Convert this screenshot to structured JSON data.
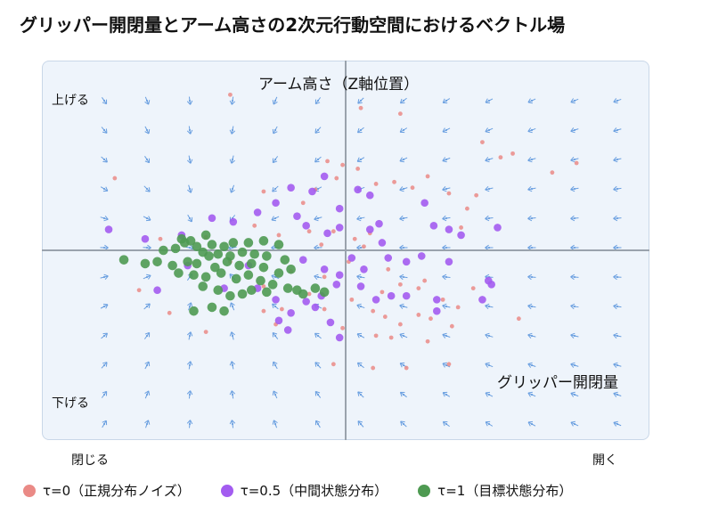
{
  "chart_data": {
    "type": "scatter",
    "title": "グリッパー開閉量とアーム高さの2次元行動空間におけるベクトル場",
    "y_axis_title": "アーム高さ（Z軸位置）",
    "x_axis_title": "グリッパー開閉量",
    "y_top_label": "上げる",
    "y_bottom_label": "下げる",
    "x_left_label": "閉じる",
    "x_right_label": "開く",
    "xlim": [
      -1,
      1
    ],
    "ylim": [
      -1,
      1
    ],
    "grid": false,
    "legend_position": "bottom",
    "vector_field": {
      "center": [
        -0.45,
        0.0
      ],
      "color": "#6a9fe0"
    },
    "series": [
      {
        "name": "τ=0（正規分布ノイズ）",
        "color": "#ea8a86",
        "points": [
          [
            -0.38,
            0.82
          ],
          [
            0.05,
            0.75
          ],
          [
            0.18,
            0.72
          ],
          [
            0.45,
            0.57
          ],
          [
            0.51,
            0.49
          ],
          [
            0.55,
            0.51
          ],
          [
            0.68,
            0.41
          ],
          [
            0.76,
            0.46
          ],
          [
            -0.76,
            0.38
          ],
          [
            -0.06,
            0.47
          ],
          [
            -0.03,
            0.38
          ],
          [
            -0.01,
            0.45
          ],
          [
            0.04,
            0.43
          ],
          [
            -0.27,
            0.31
          ],
          [
            -0.1,
            0.32
          ],
          [
            -0.14,
            0.25
          ],
          [
            0.1,
            0.35
          ],
          [
            0.16,
            0.36
          ],
          [
            0.22,
            0.33
          ],
          [
            0.27,
            0.39
          ],
          [
            0.34,
            0.3
          ],
          [
            0.4,
            0.22
          ],
          [
            0.43,
            0.29
          ],
          [
            0.38,
            0.12
          ],
          [
            -0.61,
            0.06
          ],
          [
            -0.46,
            0.07
          ],
          [
            -0.3,
            0.13
          ],
          [
            -0.22,
            0.08
          ],
          [
            -0.12,
            0.1
          ],
          [
            -0.08,
            0.03
          ],
          [
            -0.04,
            0.1
          ],
          [
            0.03,
            0.06
          ],
          [
            0.08,
            0.09
          ],
          [
            0.06,
            0.02
          ],
          [
            0.01,
            -0.06
          ],
          [
            -0.07,
            -0.14
          ],
          [
            -0.18,
            -0.11
          ],
          [
            -0.27,
            -0.19
          ],
          [
            -0.38,
            -0.06
          ],
          [
            0.14,
            -0.1
          ],
          [
            0.18,
            -0.18
          ],
          [
            0.12,
            -0.22
          ],
          [
            0.24,
            -0.2
          ],
          [
            0.26,
            -0.16
          ],
          [
            0.32,
            -0.26
          ],
          [
            0.37,
            -0.3
          ],
          [
            0.42,
            -0.2
          ],
          [
            -0.68,
            -0.21
          ],
          [
            -0.58,
            -0.33
          ],
          [
            -0.27,
            -0.32
          ],
          [
            -0.21,
            -0.31
          ],
          [
            -0.07,
            -0.31
          ],
          [
            -0.12,
            -0.23
          ],
          [
            0.02,
            -0.26
          ],
          [
            0.09,
            -0.32
          ],
          [
            0.13,
            -0.35
          ],
          [
            0.18,
            -0.39
          ],
          [
            0.24,
            -0.34
          ],
          [
            0.28,
            -0.36
          ],
          [
            -0.46,
            -0.43
          ],
          [
            -0.23,
            -0.39
          ],
          [
            -0.01,
            -0.41
          ],
          [
            0.1,
            -0.45
          ],
          [
            0.15,
            -0.46
          ],
          [
            0.27,
            -0.48
          ],
          [
            0.35,
            -0.4
          ],
          [
            0.57,
            -0.36
          ],
          [
            0.34,
            -0.6
          ],
          [
            -0.04,
            -0.6
          ],
          [
            0.09,
            -0.62
          ],
          [
            0.2,
            -0.62
          ]
        ]
      },
      {
        "name": "τ=0.5（中間状態分布）",
        "color": "#a35cf0",
        "points": [
          [
            -0.23,
            0.25
          ],
          [
            -0.18,
            0.33
          ],
          [
            -0.11,
            0.31
          ],
          [
            -0.07,
            0.39
          ],
          [
            -0.02,
            0.22
          ],
          [
            0.04,
            0.32
          ],
          [
            0.08,
            0.29
          ],
          [
            0.26,
            0.25
          ],
          [
            0.29,
            0.13
          ],
          [
            0.11,
            0.14
          ],
          [
            -0.78,
            0.11
          ],
          [
            -0.66,
            0.06
          ],
          [
            -0.54,
            0.08
          ],
          [
            -0.44,
            0.17
          ],
          [
            -0.37,
            0.15
          ],
          [
            -0.29,
            0.2
          ],
          [
            -0.16,
            0.18
          ],
          [
            -0.13,
            0.13
          ],
          [
            -0.06,
            0.09
          ],
          [
            -0.02,
            0.12
          ],
          [
            0.08,
            0.11
          ],
          [
            0.12,
            0.04
          ],
          [
            0.34,
            0.11
          ],
          [
            0.38,
            0.08
          ],
          [
            0.5,
            0.12
          ],
          [
            -0.52,
            -0.08
          ],
          [
            -0.32,
            -0.08
          ],
          [
            -0.14,
            -0.05
          ],
          [
            -0.07,
            -0.1
          ],
          [
            -0.02,
            -0.13
          ],
          [
            0.02,
            -0.04
          ],
          [
            0.06,
            -0.1
          ],
          [
            0.14,
            -0.04
          ],
          [
            0.2,
            -0.06
          ],
          [
            0.25,
            -0.03
          ],
          [
            0.34,
            -0.06
          ],
          [
            -0.62,
            -0.21
          ],
          [
            -0.4,
            -0.2
          ],
          [
            -0.29,
            -0.2
          ],
          [
            -0.23,
            -0.26
          ],
          [
            -0.13,
            -0.27
          ],
          [
            -0.08,
            -0.24
          ],
          [
            -0.03,
            -0.18
          ],
          [
            0.05,
            -0.19
          ],
          [
            0.1,
            -0.26
          ],
          [
            0.2,
            -0.24
          ],
          [
            0.3,
            -0.26
          ],
          [
            0.47,
            -0.16
          ],
          [
            0.48,
            -0.18
          ],
          [
            -0.22,
            -0.37
          ],
          [
            -0.18,
            -0.33
          ],
          [
            -0.1,
            -0.3
          ],
          [
            -0.05,
            -0.38
          ],
          [
            0.15,
            -0.24
          ],
          [
            0.3,
            -0.32
          ],
          [
            0.45,
            -0.26
          ],
          [
            -0.19,
            -0.42
          ],
          [
            -0.02,
            -0.46
          ]
        ]
      },
      {
        "name": "τ=1（目標状態分布）",
        "color": "#4e9a52",
        "points": [
          [
            -0.73,
            -0.05
          ],
          [
            -0.62,
            -0.06
          ],
          [
            -0.54,
            0.06
          ],
          [
            -0.51,
            0.05
          ],
          [
            -0.44,
            0.03
          ],
          [
            -0.4,
            0.02
          ],
          [
            -0.37,
            0.04
          ],
          [
            -0.32,
            0.04
          ],
          [
            -0.27,
            0.05
          ],
          [
            -0.22,
            0.03
          ],
          [
            -0.53,
            0.04
          ],
          [
            -0.49,
            0.02
          ],
          [
            -0.6,
            0.0
          ],
          [
            -0.56,
            0.01
          ],
          [
            -0.47,
            -0.01
          ],
          [
            -0.45,
            -0.03
          ],
          [
            -0.42,
            -0.02
          ],
          [
            -0.38,
            -0.03
          ],
          [
            -0.34,
            -0.01
          ],
          [
            -0.3,
            -0.02
          ],
          [
            -0.26,
            -0.03
          ],
          [
            -0.2,
            -0.05
          ],
          [
            -0.46,
            0.08
          ],
          [
            -0.66,
            -0.07
          ],
          [
            -0.57,
            -0.08
          ],
          [
            -0.52,
            -0.06
          ],
          [
            -0.49,
            -0.07
          ],
          [
            -0.43,
            -0.09
          ],
          [
            -0.39,
            -0.06
          ],
          [
            -0.35,
            -0.08
          ],
          [
            -0.31,
            -0.07
          ],
          [
            -0.27,
            -0.09
          ],
          [
            -0.22,
            -0.12
          ],
          [
            -0.18,
            -0.1
          ],
          [
            -0.55,
            -0.12
          ],
          [
            -0.5,
            -0.13
          ],
          [
            -0.46,
            -0.14
          ],
          [
            -0.41,
            -0.12
          ],
          [
            -0.36,
            -0.15
          ],
          [
            -0.32,
            -0.13
          ],
          [
            -0.28,
            -0.16
          ],
          [
            -0.24,
            -0.18
          ],
          [
            -0.19,
            -0.2
          ],
          [
            -0.16,
            -0.21
          ],
          [
            -0.1,
            -0.2
          ],
          [
            -0.47,
            -0.19
          ],
          [
            -0.42,
            -0.21
          ],
          [
            -0.38,
            -0.24
          ],
          [
            -0.34,
            -0.23
          ],
          [
            -0.31,
            -0.21
          ],
          [
            -0.26,
            -0.22
          ],
          [
            -0.07,
            -0.22
          ],
          [
            -0.4,
            -0.32
          ],
          [
            -0.5,
            -0.32
          ],
          [
            -0.44,
            -0.3
          ],
          [
            -0.14,
            -0.23
          ]
        ]
      }
    ]
  }
}
